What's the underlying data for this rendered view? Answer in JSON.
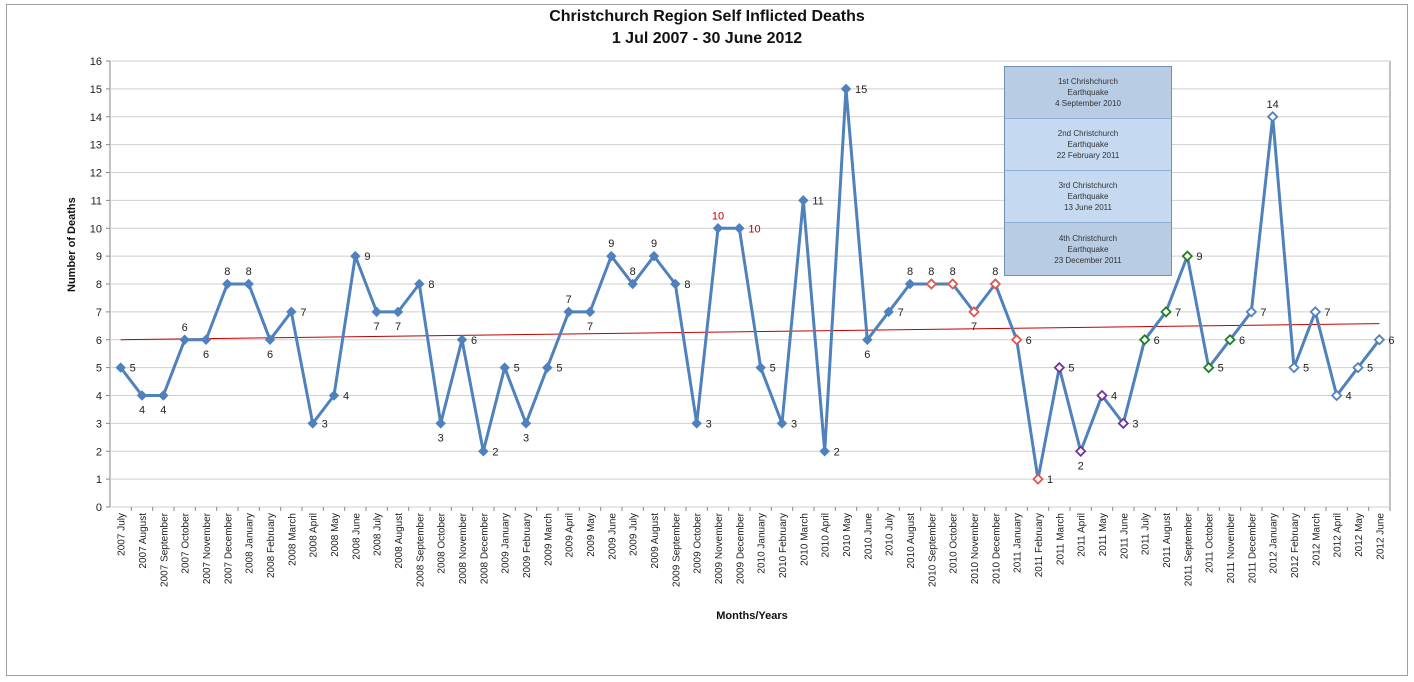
{
  "chart_data": {
    "type": "line",
    "title_line1": "Christchurch Region Self Inflicted Deaths",
    "title_line2": "1 Jul 2007 - 30 June 2012",
    "xlabel": "Months/Years",
    "ylabel": "Number of Deaths",
    "ylim": [
      0,
      16
    ],
    "yticks": [
      0,
      1,
      2,
      3,
      4,
      5,
      6,
      7,
      8,
      9,
      10,
      11,
      12,
      13,
      14,
      15,
      16
    ],
    "grid": "horizontal",
    "categories": [
      "2007 July",
      "2007 August",
      "2007 September",
      "2007 October",
      "2007 November",
      "2007 December",
      "2008 January",
      "2008 February",
      "2008 March",
      "2008 April",
      "2008 May",
      "2008 June",
      "2008 July",
      "2008 August",
      "2008 September",
      "2008 October",
      "2008 November",
      "2008 December",
      "2009 January",
      "2009 February",
      "2009 March",
      "2009 April",
      "2009 May",
      "2009 June",
      "2009 July",
      "2009 August",
      "2009 September",
      "2009 October",
      "2009 November",
      "2009 December",
      "2010 January",
      "2010 February",
      "2010 March",
      "2010 April",
      "2010 May",
      "2010 June",
      "2010 July",
      "2010 August",
      "2010 September",
      "2010 October",
      "2010 November",
      "2010 December",
      "2011 January",
      "2011 February",
      "2011 March",
      "2011 April",
      "2011 May",
      "2011 June",
      "2011 July",
      "2011 August",
      "2011 September",
      "2011 October",
      "2011 November",
      "2011 December",
      "2012 January",
      "2012 February",
      "2012 March",
      "2012 April",
      "2012 May",
      "2012 June"
    ],
    "series": [
      {
        "values": [
          5,
          4,
          4,
          6,
          6,
          8,
          8,
          6,
          7,
          3,
          4,
          9,
          7,
          7,
          8,
          3,
          6,
          2,
          5,
          3,
          5,
          7,
          7,
          9,
          8,
          9,
          8,
          3,
          10,
          10,
          5,
          3,
          11,
          2,
          15,
          6,
          7,
          8,
          8,
          8,
          7,
          8,
          6,
          1,
          5,
          2,
          4,
          3,
          6,
          7,
          9,
          5,
          6,
          7,
          14,
          5,
          7,
          4,
          5,
          6
        ],
        "color": "#4f81bd"
      }
    ],
    "trendline": {
      "start": 6.0,
      "end": 6.58,
      "color": "#c00000"
    },
    "marker_groups": [
      {
        "from": 0,
        "to": 37,
        "style": "filled-diamond",
        "color": "#4f81bd"
      },
      {
        "from": 38,
        "to": 43,
        "style": "hollow-diamond",
        "color": "#e0554d"
      },
      {
        "from": 44,
        "to": 47,
        "style": "hollow-diamond",
        "color": "#7030a0"
      },
      {
        "from": 48,
        "to": 52,
        "style": "hollow-diamond",
        "color": "#1e7e1e"
      },
      {
        "from": 53,
        "to": 59,
        "style": "hollow-diamond",
        "color": "#4f81bd"
      }
    ],
    "label_colors": {
      "10": "#c00000"
    },
    "data_labels": [
      {
        "i": 0,
        "pos": "right"
      },
      {
        "i": 1,
        "pos": "below"
      },
      {
        "i": 2,
        "pos": "below"
      },
      {
        "i": 3,
        "pos": "above"
      },
      {
        "i": 4,
        "pos": "below"
      },
      {
        "i": 5,
        "pos": "above"
      },
      {
        "i": 6,
        "pos": "above"
      },
      {
        "i": 7,
        "pos": "below"
      },
      {
        "i": 8,
        "pos": "right"
      },
      {
        "i": 9,
        "pos": "right"
      },
      {
        "i": 10,
        "pos": "right"
      },
      {
        "i": 11,
        "pos": "right"
      },
      {
        "i": 12,
        "pos": "below"
      },
      {
        "i": 13,
        "pos": "below"
      },
      {
        "i": 14,
        "pos": "right"
      },
      {
        "i": 15,
        "pos": "below"
      },
      {
        "i": 16,
        "pos": "right"
      },
      {
        "i": 17,
        "pos": "right"
      },
      {
        "i": 18,
        "pos": "right"
      },
      {
        "i": 19,
        "pos": "below"
      },
      {
        "i": 20,
        "pos": "right"
      },
      {
        "i": 21,
        "pos": "above"
      },
      {
        "i": 22,
        "pos": "below"
      },
      {
        "i": 23,
        "pos": "above"
      },
      {
        "i": 24,
        "pos": "above"
      },
      {
        "i": 25,
        "pos": "above"
      },
      {
        "i": 26,
        "pos": "right"
      },
      {
        "i": 27,
        "pos": "right"
      },
      {
        "i": 28,
        "pos": "above"
      },
      {
        "i": 29,
        "pos": "right"
      },
      {
        "i": 30,
        "pos": "right"
      },
      {
        "i": 31,
        "pos": "right"
      },
      {
        "i": 32,
        "pos": "right"
      },
      {
        "i": 33,
        "pos": "right"
      },
      {
        "i": 34,
        "pos": "right"
      },
      {
        "i": 35,
        "pos": "below"
      },
      {
        "i": 36,
        "pos": "right"
      },
      {
        "i": 37,
        "pos": "above"
      },
      {
        "i": 38,
        "pos": "above"
      },
      {
        "i": 39,
        "pos": "above"
      },
      {
        "i": 40,
        "pos": "below"
      },
      {
        "i": 41,
        "pos": "above"
      },
      {
        "i": 42,
        "pos": "right"
      },
      {
        "i": 43,
        "pos": "right"
      },
      {
        "i": 44,
        "pos": "right"
      },
      {
        "i": 45,
        "pos": "below"
      },
      {
        "i": 46,
        "pos": "right"
      },
      {
        "i": 47,
        "pos": "right"
      },
      {
        "i": 48,
        "pos": "right"
      },
      {
        "i": 49,
        "pos": "right"
      },
      {
        "i": 50,
        "pos": "right"
      },
      {
        "i": 51,
        "pos": "right"
      },
      {
        "i": 52,
        "pos": "right"
      },
      {
        "i": 53,
        "pos": "right"
      },
      {
        "i": 54,
        "pos": "above"
      },
      {
        "i": 55,
        "pos": "right"
      },
      {
        "i": 56,
        "pos": "right"
      },
      {
        "i": 57,
        "pos": "right"
      },
      {
        "i": 58,
        "pos": "right"
      },
      {
        "i": 59,
        "pos": "right"
      }
    ],
    "legend": {
      "items": [
        {
          "text": "1st Chrishchurch\nEarthquake\n4 September 2010",
          "fill": "#b8cce4"
        },
        {
          "text": "2nd Christchurch\nEarthquake\n22 February 2011",
          "fill": "#c5d9f1"
        },
        {
          "text": "3rd Christchurch\nEarthquake\n13 June 2011",
          "fill": "#c5d9f1"
        },
        {
          "text": "4th Christchurch\nEarthquake\n23 December 2011",
          "fill": "#b8cce4"
        }
      ]
    }
  }
}
